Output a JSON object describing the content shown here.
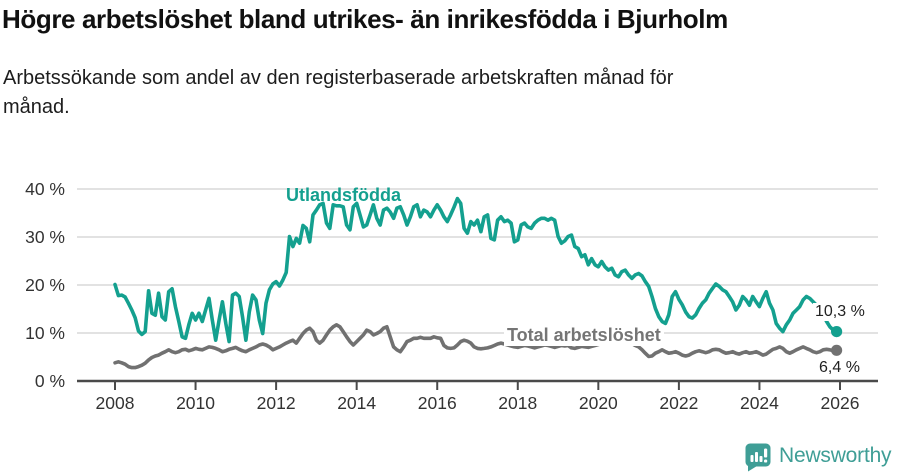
{
  "header": {
    "title": "Högre arbetslöshet bland utrikes- än inrikesfödda i Bjurholm",
    "subtitle": "Arbetssökande som andel av den registerbaserade arbetskraften månad för månad."
  },
  "chart_data": {
    "type": "line",
    "title": "Högre arbetslöshet bland utrikes- än inrikesfödda i Bjurholm",
    "xlabel": "",
    "ylabel": "",
    "grid": true,
    "legend_position": "inline-labels",
    "x_start_year": 2008,
    "x_months_per_point": 1,
    "xlim": [
      2007.6,
      2026.8
    ],
    "ylim": [
      0,
      42
    ],
    "x_ticks": [
      2008,
      2010,
      2012,
      2014,
      2016,
      2018,
      2020,
      2022,
      2024,
      2026
    ],
    "y_ticks": [
      {
        "value": 40,
        "label": "40 %"
      },
      {
        "value": 30,
        "label": "30 %"
      },
      {
        "value": 20,
        "label": "20 %"
      },
      {
        "value": 10,
        "label": "10 %"
      },
      {
        "value": 0,
        "label": "0 %"
      }
    ],
    "colors": {
      "grid": "#d9d9d9",
      "axis": "#4a4a4a",
      "tick_text": "#333333"
    },
    "series": [
      {
        "name": "Utlandsfödda",
        "color": "#14a08f",
        "end_label": "10,3 %",
        "end_value": 10.3,
        "values": [
          20.1,
          17.8,
          17.9,
          17.5,
          16.2,
          14.8,
          13.2,
          10.4,
          9.7,
          10.3,
          18.8,
          14.1,
          13.7,
          18.3,
          13.4,
          12.7,
          18.6,
          19.2,
          15.5,
          12.4,
          9.2,
          8.9,
          11.7,
          14.1,
          12.7,
          14.1,
          12.4,
          14.8,
          17.2,
          12.7,
          8.5,
          12.7,
          16.5,
          12.0,
          8.2,
          17.9,
          18.3,
          17.6,
          13.4,
          8.5,
          14.4,
          17.9,
          16.9,
          12.7,
          9.9,
          16.2,
          19.0,
          20.2,
          20.7,
          19.8,
          21.0,
          22.6,
          30.1,
          28.0,
          29.7,
          28.7,
          32.4,
          31.8,
          29.0,
          34.6,
          35.6,
          36.7,
          37.0,
          32.9,
          31.8,
          36.7,
          36.5,
          36.5,
          36.3,
          32.5,
          31.5,
          36.3,
          37.0,
          34.6,
          32.1,
          32.5,
          34.6,
          36.7,
          33.9,
          32.5,
          35.6,
          36.0,
          35.2,
          33.9,
          36.0,
          36.3,
          34.6,
          32.5,
          34.2,
          36.3,
          36.7,
          34.2,
          35.6,
          35.2,
          34.2,
          35.6,
          36.7,
          35.6,
          34.2,
          33.2,
          34.6,
          36.2,
          38.0,
          37.0,
          31.8,
          30.8,
          33.2,
          32.5,
          33.5,
          31.1,
          34.2,
          34.6,
          29.7,
          29.4,
          33.5,
          34.2,
          33.2,
          33.5,
          32.9,
          29.0,
          29.4,
          32.5,
          32.9,
          32.1,
          31.8,
          32.9,
          33.5,
          33.9,
          33.9,
          33.5,
          33.9,
          33.5,
          30.1,
          28.7,
          29.2,
          30.1,
          30.4,
          28.0,
          27.6,
          25.9,
          26.3,
          24.2,
          25.5,
          24.2,
          23.8,
          24.9,
          23.8,
          23.1,
          23.5,
          22.1,
          21.7,
          22.8,
          23.1,
          22.1,
          21.4,
          22.1,
          22.4,
          21.9,
          20.7,
          19.7,
          17.6,
          15.1,
          13.4,
          12.4,
          12.0,
          13.8,
          17.6,
          18.6,
          17.0,
          15.9,
          14.4,
          13.4,
          13.1,
          13.8,
          15.1,
          16.2,
          16.9,
          18.3,
          19.3,
          20.2,
          19.7,
          19.0,
          18.6,
          17.6,
          16.5,
          14.8,
          15.8,
          17.6,
          16.9,
          15.8,
          17.6,
          16.5,
          15.5,
          17.2,
          18.6,
          16.2,
          14.8,
          12.0,
          11.0,
          10.3,
          11.7,
          12.7,
          14.1,
          14.8,
          15.5,
          16.9,
          17.6,
          17.2,
          16.5,
          15.8,
          15.1,
          13.8,
          12.4,
          11.3,
          10.6,
          10.3
        ]
      },
      {
        "name": "Total arbetslöshet",
        "color": "#717171",
        "end_label": "6,4 %",
        "end_value": 6.4,
        "values": [
          3.8,
          4.0,
          3.8,
          3.5,
          3.0,
          2.8,
          2.8,
          3.0,
          3.3,
          3.7,
          4.4,
          4.9,
          5.2,
          5.4,
          5.8,
          6.1,
          6.5,
          6.1,
          5.9,
          6.1,
          6.5,
          6.6,
          6.3,
          6.5,
          6.8,
          6.6,
          6.5,
          6.8,
          7.1,
          7.0,
          6.8,
          6.5,
          6.1,
          6.3,
          6.6,
          6.8,
          7.0,
          6.6,
          6.3,
          6.1,
          6.5,
          6.8,
          7.1,
          7.5,
          7.7,
          7.5,
          7.1,
          6.5,
          6.8,
          7.1,
          7.5,
          7.9,
          8.2,
          8.5,
          7.9,
          8.9,
          9.9,
          10.6,
          11.0,
          10.3,
          8.5,
          7.9,
          8.5,
          9.6,
          10.6,
          11.3,
          11.7,
          11.3,
          10.3,
          9.2,
          8.2,
          7.5,
          8.2,
          8.9,
          9.6,
          10.6,
          10.3,
          9.6,
          9.9,
          10.3,
          11.0,
          11.3,
          9.2,
          7.1,
          6.5,
          6.1,
          7.1,
          8.2,
          8.5,
          8.9,
          8.9,
          9.1,
          8.9,
          8.9,
          8.9,
          9.2,
          9.0,
          8.9,
          7.4,
          6.9,
          6.8,
          6.9,
          7.5,
          8.2,
          8.5,
          8.3,
          7.9,
          7.1,
          6.8,
          6.7,
          6.8,
          6.9,
          7.1,
          7.4,
          7.7,
          7.9,
          7.7,
          7.5,
          7.3,
          7.1,
          7.0,
          7.2,
          7.4,
          7.3,
          7.1,
          6.9,
          7.1,
          7.3,
          7.5,
          7.4,
          7.2,
          7.0,
          7.2,
          7.4,
          7.3,
          7.4,
          6.9,
          6.8,
          7.0,
          7.2,
          7.1,
          7.0,
          7.2,
          7.4,
          7.6,
          7.8,
          8.0,
          8.3,
          8.5,
          8.4,
          8.2,
          8.0,
          7.9,
          8.1,
          7.8,
          7.4,
          7.1,
          6.5,
          5.8,
          5.1,
          5.2,
          5.8,
          6.1,
          6.5,
          6.1,
          5.8,
          5.9,
          6.1,
          5.8,
          5.4,
          5.2,
          5.4,
          5.8,
          6.1,
          6.3,
          6.1,
          5.9,
          6.1,
          6.5,
          6.6,
          6.5,
          6.1,
          5.8,
          5.9,
          6.1,
          5.8,
          5.6,
          5.9,
          6.1,
          5.8,
          5.9,
          6.1,
          5.8,
          5.4,
          5.6,
          6.1,
          6.6,
          6.8,
          7.1,
          6.8,
          6.1,
          5.8,
          6.1,
          6.5,
          6.8,
          7.1,
          6.8,
          6.5,
          6.1,
          5.9,
          6.1,
          6.5,
          6.6,
          6.5,
          6.3,
          6.4
        ]
      }
    ]
  },
  "footer": {
    "brand": "Newsworthy",
    "brand_color": "#3f9e96"
  }
}
